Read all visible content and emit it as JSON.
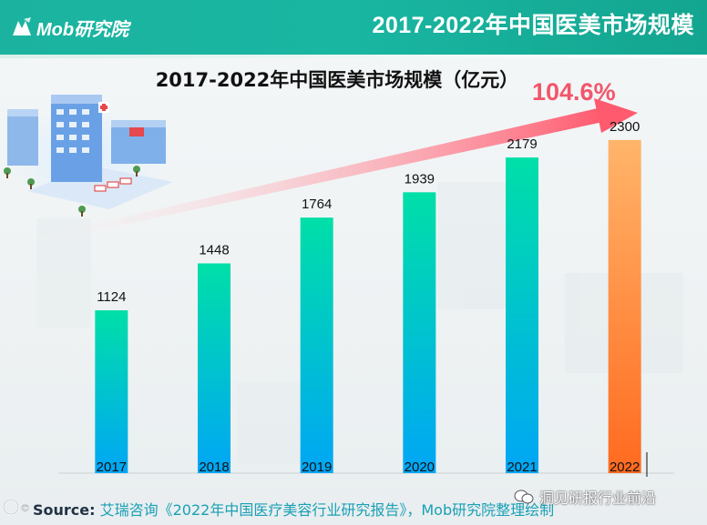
{
  "header": {
    "logo_text": "Mob研究院",
    "title": "2017-2022年中国医美市场规模"
  },
  "growth_label": "104.6%",
  "chart_data": {
    "type": "bar",
    "title": "2017-2022年中国医美市场规模（亿元）",
    "unit": "亿元",
    "categories": [
      "2017",
      "2018",
      "2019",
      "2020",
      "2021",
      "2022"
    ],
    "values": [
      1124,
      1448,
      1764,
      1939,
      2179,
      2300
    ],
    "ylim": [
      0,
      2500
    ],
    "grid": false,
    "legend": "none",
    "annotation": "104.6%"
  },
  "colors": {
    "bar_top": "#00dfa8",
    "bar_bottom": "#00a6f5",
    "bar_highlight_top": "#ffb56a",
    "bar_highlight_bottom": "#ff6a1f",
    "arrow": "#ff5a6e"
  },
  "footer": {
    "source_label": "Source:",
    "source_text": "艾瑞咨询《2022年中国医疗美容行业研究报告》，Mob研究院整理绘制",
    "watermark": "洞见研报行业前沿"
  }
}
